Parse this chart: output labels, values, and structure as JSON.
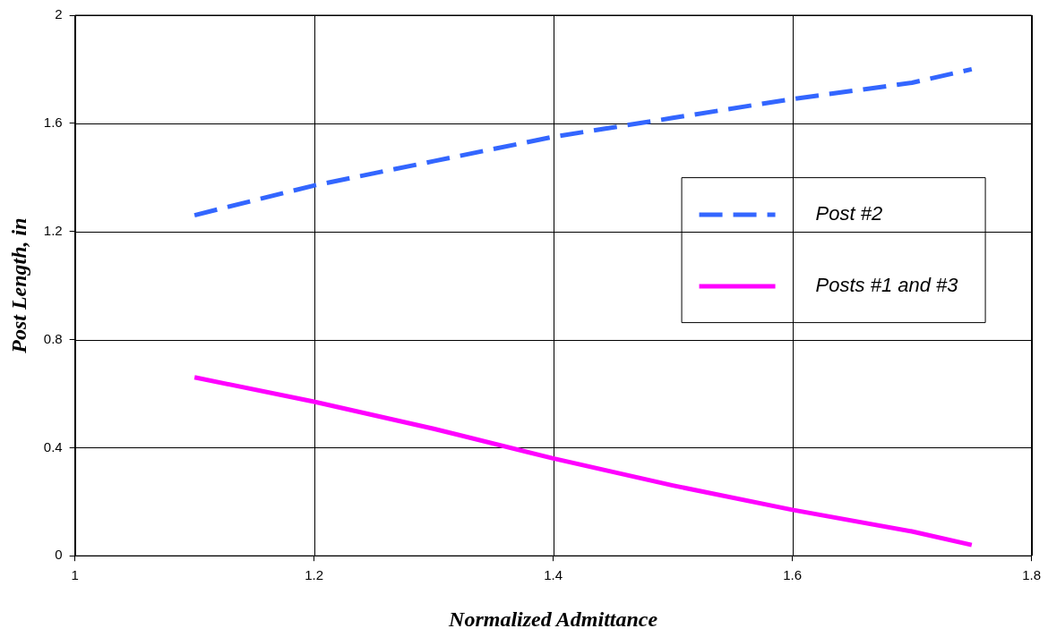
{
  "chart_data": {
    "type": "line",
    "xlabel": "Normalized Admittance",
    "ylabel": "Post Length, in",
    "x": [
      1.1,
      1.2,
      1.3,
      1.4,
      1.5,
      1.6,
      1.7,
      1.75
    ],
    "series": [
      {
        "name": "Post #2",
        "color": "#3366ff",
        "line_style": "dashed",
        "values": [
          1.26,
          1.37,
          1.46,
          1.55,
          1.62,
          1.69,
          1.75,
          1.8
        ]
      },
      {
        "name": "Posts #1 and #3",
        "color": "#ff00ff",
        "line_style": "solid",
        "values": [
          0.66,
          0.57,
          0.47,
          0.36,
          0.26,
          0.17,
          0.09,
          0.04
        ]
      }
    ],
    "xlim": [
      1,
      1.8
    ],
    "xticks": [
      1,
      1.2,
      1.4,
      1.6,
      1.8
    ],
    "ylim": [
      0,
      2
    ],
    "yticks": [
      0,
      0.4,
      0.8,
      1.2,
      1.6,
      2
    ],
    "grid": true,
    "legend": "right",
    "marker": "none"
  }
}
